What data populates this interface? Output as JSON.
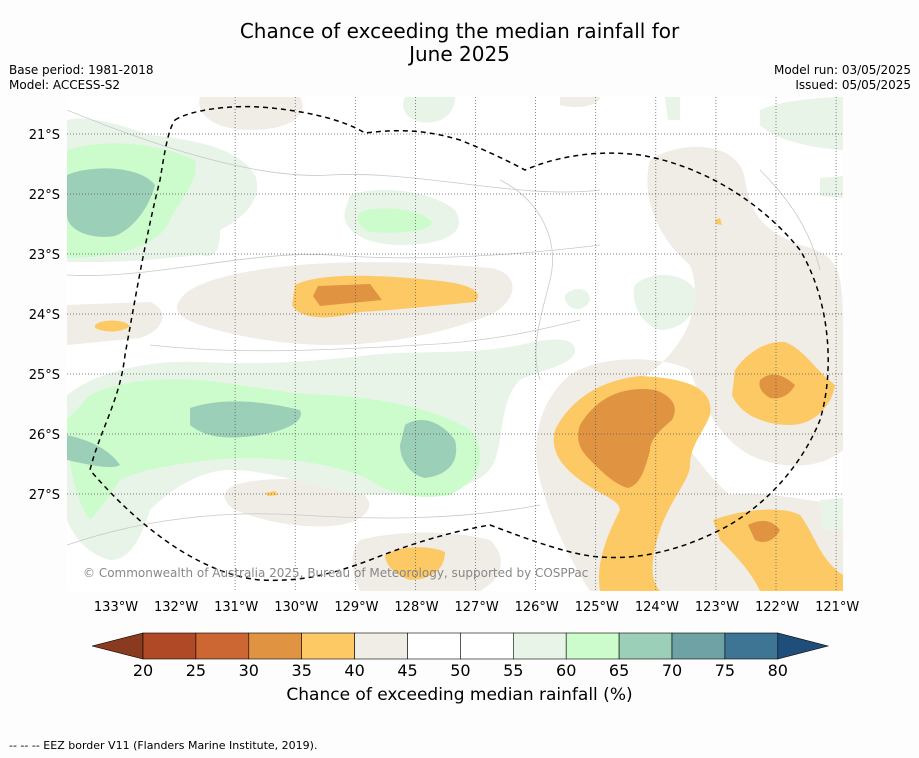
{
  "header": {
    "title_line1": "Chance of exceeding the median rainfall for",
    "title_line2": "June 2025",
    "base_period": "Base period: 1981-2018",
    "model": "Model: ACCESS-S2",
    "model_run": "Model run: 03/05/2025",
    "issued": "Issued: 05/05/2025"
  },
  "map": {
    "copyright": "© Commonwealth of Australia 2025, Bureau of Meteorology, supported by COSPPac",
    "lat_labels": [
      "21°S",
      "22°S",
      "23°S",
      "24°S",
      "25°S",
      "26°S",
      "27°S"
    ],
    "lon_labels": [
      "133°W",
      "132°W",
      "131°W",
      "130°W",
      "129°W",
      "128°W",
      "127°W",
      "126°W",
      "125°W",
      "124°W",
      "123°W",
      "122°W",
      "121°W"
    ],
    "colors": {
      "c20": "#8a3a1f",
      "c25": "#b04a26",
      "c30": "#cc6633",
      "c35": "#e09442",
      "c40": "#fdc964",
      "c45": "#f0ece6",
      "c50": "#ffffff",
      "c55": "#ffffff",
      "c60": "#e8f4e8",
      "c65": "#ccfccc",
      "c70": "#9ccfb7",
      "c75": "#6ea2a4",
      "c80": "#3e7494",
      "c85": "#1f4e7a",
      "eez": "#000000"
    }
  },
  "colorbar": {
    "ticks": [
      "20",
      "25",
      "30",
      "35",
      "40",
      "45",
      "50",
      "55",
      "60",
      "65",
      "70",
      "75",
      "80"
    ],
    "title": "Chance of exceeding median rainfall (%)"
  },
  "footer": {
    "legend_line": "-- -- -- EEZ border V11 (Flanders Marine Institute, 2019)."
  }
}
